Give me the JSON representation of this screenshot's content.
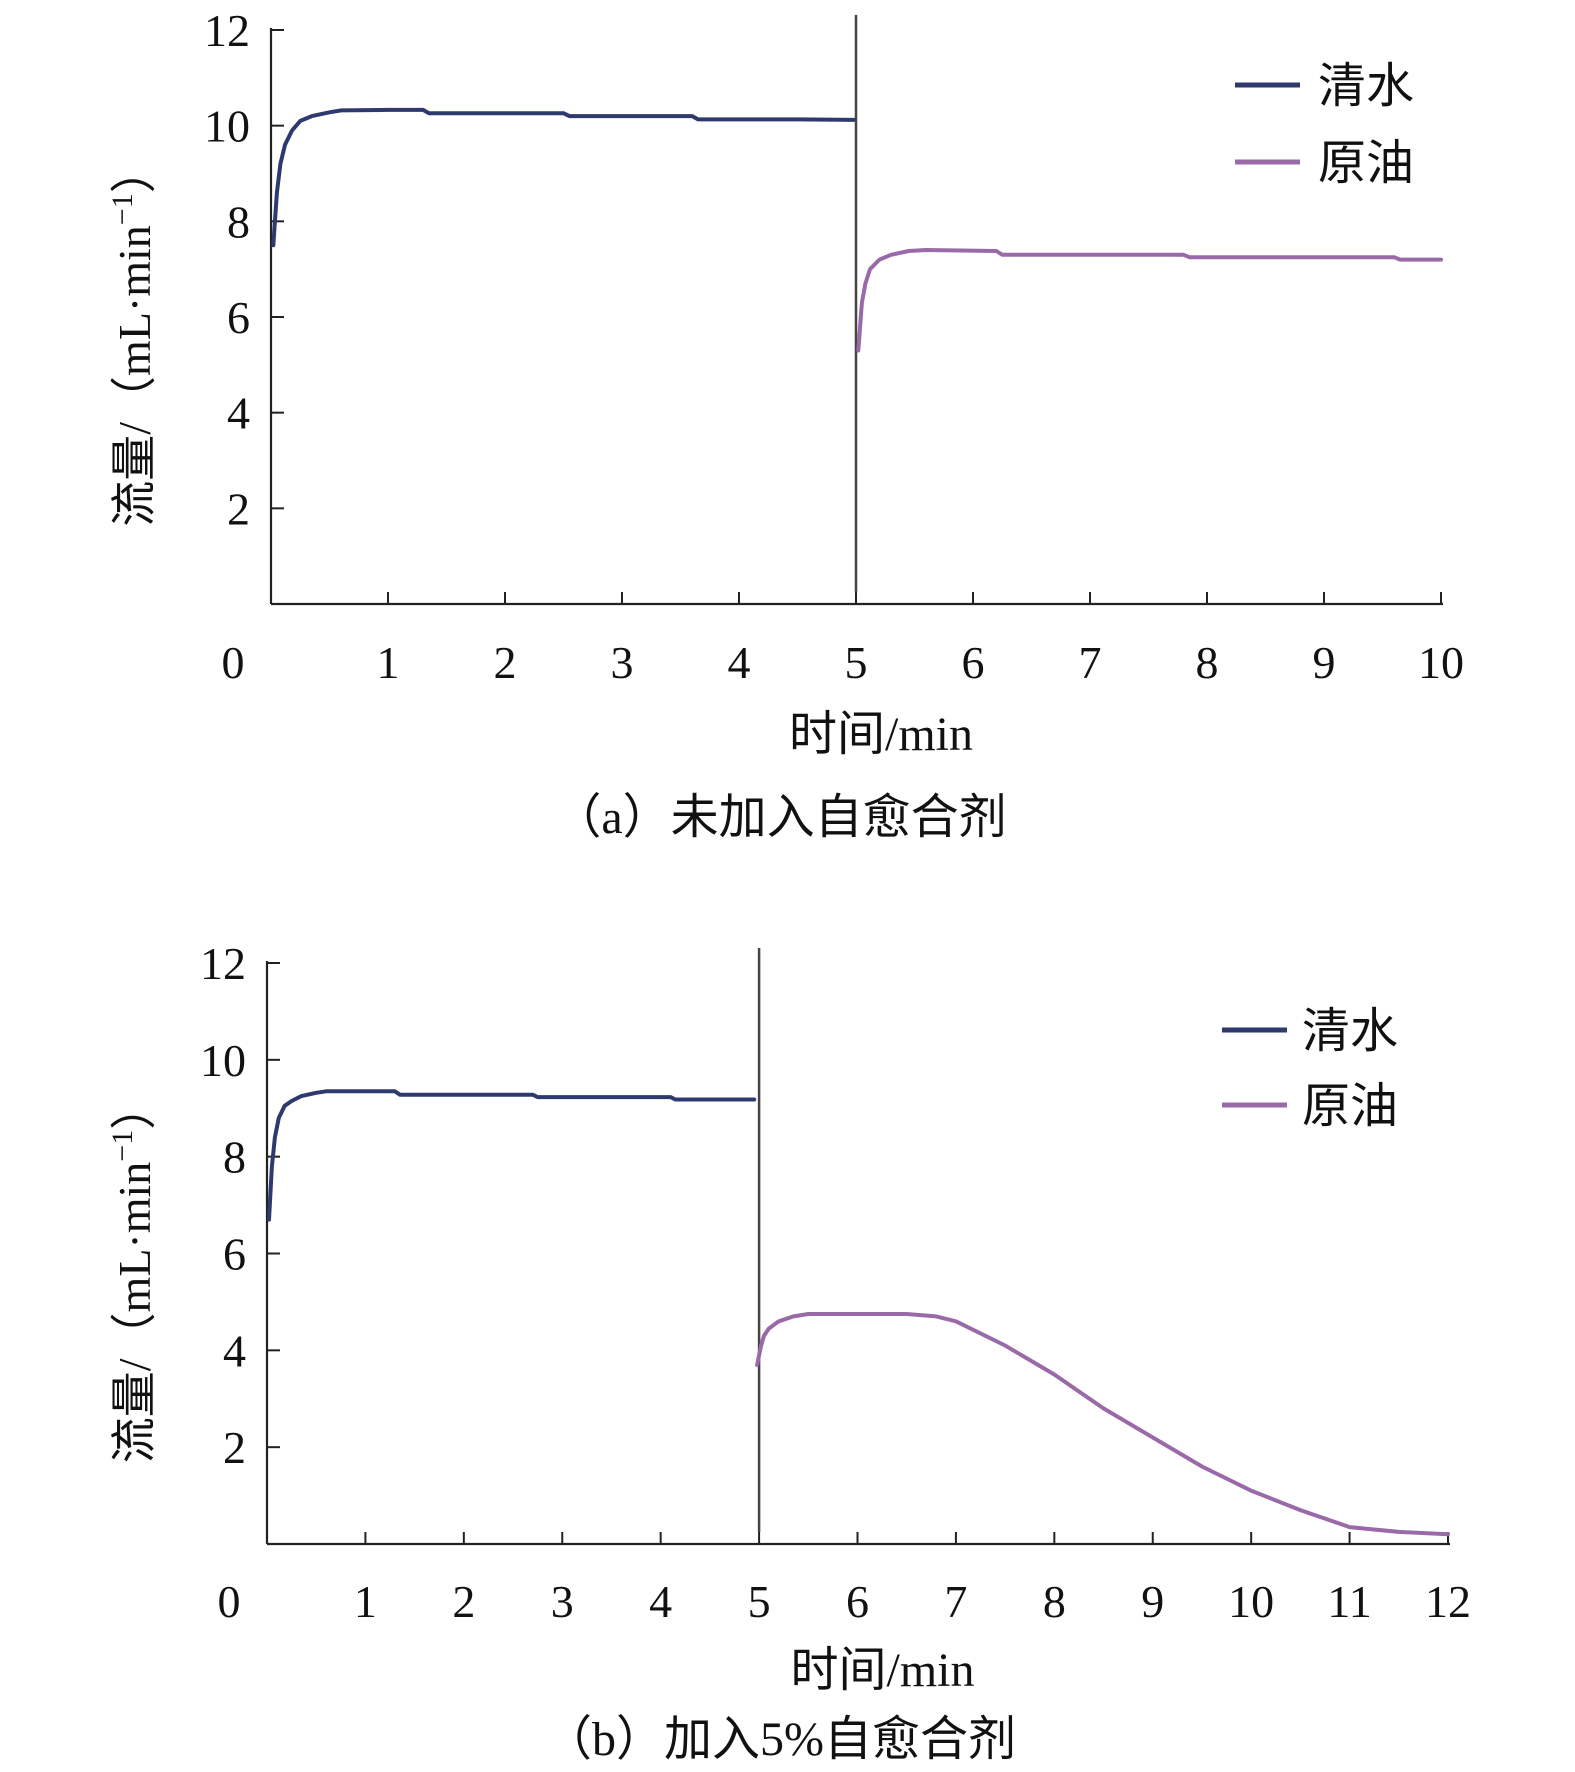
{
  "charts": [
    {
      "caption": "（a）未加入自愈合剂",
      "chart_data": {
        "type": "line",
        "xlabel": "时间/min",
        "ylabel": "流量/（mL·min",
        "ylabel_sup": "−1",
        "ylabel_close": "）",
        "xlim": [
          0,
          10
        ],
        "ylim": [
          0,
          12
        ],
        "xticks": [
          0,
          1,
          2,
          3,
          4,
          5,
          6,
          7,
          8,
          9,
          10
        ],
        "yticks": [
          2,
          4,
          6,
          8,
          10,
          12
        ],
        "divider_x": 5,
        "legend_position": "top-right",
        "series": [
          {
            "name": "清水",
            "color": "#2e3a6e",
            "x": [
              0.02,
              0.05,
              0.08,
              0.12,
              0.18,
              0.25,
              0.35,
              0.5,
              0.6,
              1.0,
              1.3,
              1.35,
              2.5,
              2.55,
              3.6,
              3.65,
              4.5,
              4.98
            ],
            "y": [
              7.5,
              8.6,
              9.2,
              9.6,
              9.9,
              10.1,
              10.2,
              10.28,
              10.32,
              10.33,
              10.33,
              10.26,
              10.26,
              10.2,
              10.2,
              10.13,
              10.13,
              10.12
            ]
          },
          {
            "name": "原油",
            "color": "#9a6aa8",
            "x": [
              5.02,
              5.05,
              5.08,
              5.12,
              5.2,
              5.3,
              5.45,
              5.6,
              6.2,
              6.25,
              7.8,
              7.85,
              9.6,
              9.65,
              10.0
            ],
            "y": [
              5.3,
              6.3,
              6.7,
              7.0,
              7.2,
              7.3,
              7.38,
              7.4,
              7.38,
              7.3,
              7.3,
              7.25,
              7.25,
              7.2,
              7.2
            ]
          }
        ]
      }
    },
    {
      "caption": "（b）加入5%自愈合剂",
      "chart_data": {
        "type": "line",
        "xlabel": "时间/min",
        "ylabel": "流量/（mL·min",
        "ylabel_sup": "−1",
        "ylabel_close": "）",
        "xlim": [
          0,
          12
        ],
        "ylim": [
          0,
          12
        ],
        "xticks": [
          0,
          1,
          2,
          3,
          4,
          5,
          6,
          7,
          8,
          9,
          10,
          11,
          12
        ],
        "yticks": [
          2,
          4,
          6,
          8,
          10,
          12
        ],
        "divider_x": 5,
        "legend_position": "top-right",
        "series": [
          {
            "name": "清水",
            "color": "#2e3a6e",
            "x": [
              0.02,
              0.05,
              0.08,
              0.12,
              0.18,
              0.25,
              0.35,
              0.5,
              0.6,
              1.3,
              1.35,
              2.7,
              2.75,
              4.1,
              4.15,
              4.95
            ],
            "y": [
              6.7,
              7.8,
              8.4,
              8.8,
              9.05,
              9.15,
              9.25,
              9.32,
              9.35,
              9.35,
              9.28,
              9.28,
              9.23,
              9.23,
              9.18,
              9.18
            ]
          },
          {
            "name": "原油",
            "color": "#9a6aa8",
            "x": [
              4.98,
              5.02,
              5.05,
              5.1,
              5.2,
              5.35,
              5.5,
              6.5,
              6.8,
              7.0,
              7.5,
              8.0,
              8.5,
              9.0,
              9.5,
              10.0,
              10.5,
              11.0,
              11.5,
              12.0
            ],
            "y": [
              3.7,
              4.1,
              4.3,
              4.45,
              4.6,
              4.7,
              4.75,
              4.75,
              4.7,
              4.6,
              4.1,
              3.5,
              2.8,
              2.2,
              1.6,
              1.1,
              0.7,
              0.35,
              0.25,
              0.2
            ]
          }
        ]
      }
    }
  ]
}
